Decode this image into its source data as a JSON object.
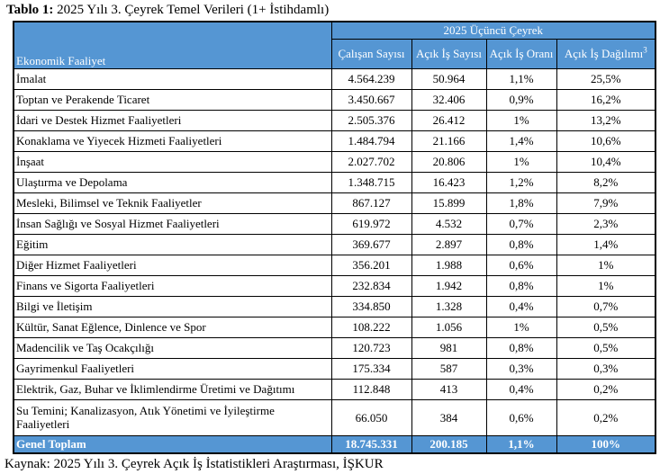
{
  "title": {
    "prefix": "Tablo 1:",
    "rest": " 2025 Yılı 3. Çeyrek Temel Verileri (1+ İstihdamlı)"
  },
  "table": {
    "group_header": "2025 Üçüncü Çeyrek",
    "col_headers": {
      "activity": "Ekonomik Faaliyet",
      "employees": "Çalışan Sayısı",
      "open_jobs": "Açık İş Sayısı",
      "open_rate": "Açık İş Oranı",
      "distribution": "Açık İş Dağılımı",
      "distribution_superscript": "3"
    },
    "rows": [
      {
        "label": "İmalat",
        "values": [
          "4.564.239",
          "50.964",
          "1,1%",
          "25,5%"
        ]
      },
      {
        "label": "Toptan ve Perakende Ticaret",
        "values": [
          "3.450.667",
          "32.406",
          "0,9%",
          "16,2%"
        ]
      },
      {
        "label": "İdari ve Destek Hizmet Faaliyetleri",
        "values": [
          "2.505.376",
          "26.412",
          "1%",
          "13,2%"
        ]
      },
      {
        "label": "Konaklama ve Yiyecek Hizmeti Faaliyetleri",
        "values": [
          "1.484.794",
          "21.166",
          "1,4%",
          "10,6%"
        ]
      },
      {
        "label": "İnşaat",
        "values": [
          "2.027.702",
          "20.806",
          "1%",
          "10,4%"
        ]
      },
      {
        "label": "Ulaştırma ve Depolama",
        "values": [
          "1.348.715",
          "16.423",
          "1,2%",
          "8,2%"
        ]
      },
      {
        "label": "Mesleki, Bilimsel ve Teknik Faaliyetler",
        "values": [
          "867.127",
          "15.899",
          "1,8%",
          "7,9%"
        ]
      },
      {
        "label": "İnsan Sağlığı ve Sosyal Hizmet Faaliyetleri",
        "values": [
          "619.972",
          "4.532",
          "0,7%",
          "2,3%"
        ]
      },
      {
        "label": "Eğitim",
        "values": [
          "369.677",
          "2.897",
          "0,8%",
          "1,4%"
        ]
      },
      {
        "label": "Diğer Hizmet Faaliyetleri",
        "values": [
          "356.201",
          "1.988",
          "0,6%",
          "1%"
        ]
      },
      {
        "label": "Finans ve Sigorta Faaliyetleri",
        "values": [
          "232.834",
          "1.942",
          "0,8%",
          "1%"
        ]
      },
      {
        "label": "Bilgi ve İletişim",
        "values": [
          "334.850",
          "1.328",
          "0,4%",
          "0,7%"
        ]
      },
      {
        "label": "Kültür, Sanat Eğlence, Dinlence ve Spor",
        "values": [
          "108.222",
          "1.056",
          "1%",
          "0,5%"
        ]
      },
      {
        "label": "Madencilik ve Taş Ocakçılığı",
        "values": [
          "120.723",
          "981",
          "0,8%",
          "0,5%"
        ]
      },
      {
        "label": "Gayrimenkul Faaliyetleri",
        "values": [
          "175.334",
          "587",
          "0,3%",
          "0,3%"
        ]
      },
      {
        "label": "Elektrik, Gaz, Buhar ve İklimlendirme Üretimi ve Dağıtımı",
        "values": [
          "112.848",
          "413",
          "0,4%",
          "0,2%"
        ]
      },
      {
        "label": "Su Temini; Kanalizasyon, Atık Yönetimi ve İyileştirme Faaliyetleri",
        "values": [
          "66.050",
          "384",
          "0,6%",
          "0,2%"
        ],
        "tall": true
      }
    ],
    "total": {
      "label": "Genel Toplam",
      "values": [
        "18.745.331",
        "200.185",
        "1,1%",
        "100%"
      ]
    }
  },
  "source": "Kaynak: 2025 Yılı 3. Çeyrek Açık İş İstatistikleri Araştırması, İŞKUR",
  "colors": {
    "header_blue": "#5596D3",
    "border": "#000000",
    "header_text": "#FFFFFF"
  }
}
